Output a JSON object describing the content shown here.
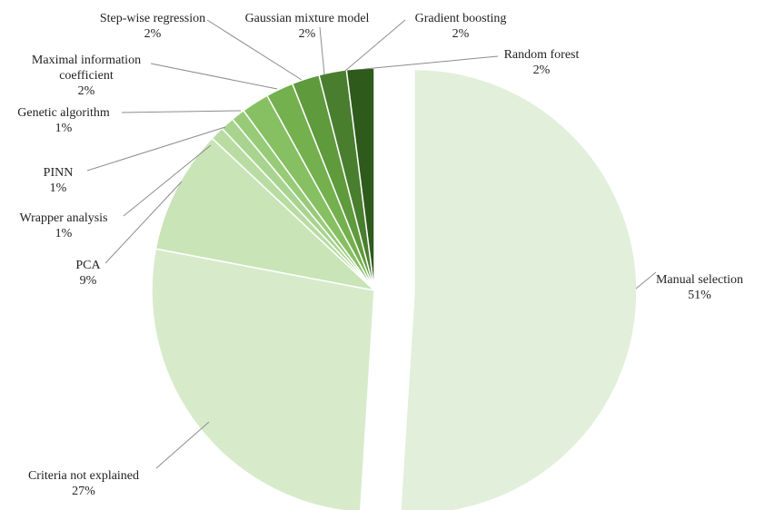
{
  "chart_data": {
    "type": "pie",
    "title": "",
    "slices": [
      {
        "name": "Manual selection",
        "display_name": [
          "Manual selection"
        ],
        "value": 51,
        "value_label": "51%",
        "color": "#e2efda"
      },
      {
        "name": "Criteria not explained",
        "display_name": [
          "Criteria not explained"
        ],
        "value": 27,
        "value_label": "27%",
        "color": "#d7ebcb"
      },
      {
        "name": "PCA",
        "display_name": [
          "PCA"
        ],
        "value": 9,
        "value_label": "9%",
        "color": "#c9e4b7"
      },
      {
        "name": "Wrapper analysis",
        "display_name": [
          "Wrapper analysis"
        ],
        "value": 1,
        "value_label": "1%",
        "color": "#b9dca3"
      },
      {
        "name": "PINN",
        "display_name": [
          "PINN"
        ],
        "value": 1,
        "value_label": "1%",
        "color": "#a9d48f"
      },
      {
        "name": "Genetic algorithm",
        "display_name": [
          "Genetic algorithm"
        ],
        "value": 1,
        "value_label": "1%",
        "color": "#98cb78"
      },
      {
        "name": "Maximal information coefficient",
        "display_name": [
          "Maximal information",
          "coefficient"
        ],
        "value": 2,
        "value_label": "2%",
        "color": "#86c062"
      },
      {
        "name": "Step-wise regression",
        "display_name": [
          "Step-wise regression"
        ],
        "value": 2,
        "value_label": "2%",
        "color": "#74b04e"
      },
      {
        "name": "Gaussian mixture model",
        "display_name": [
          "Gaussian mixture model"
        ],
        "value": 2,
        "value_label": "2%",
        "color": "#5f9a3d"
      },
      {
        "name": "Gradient boosting",
        "display_name": [
          "Gradient boosting"
        ],
        "value": 2,
        "value_label": "2%",
        "color": "#4a7e2f"
      },
      {
        "name": "Random forest",
        "display_name": [
          "Random forest"
        ],
        "value": 2,
        "value_label": "2%",
        "color": "#2e5a1c"
      }
    ],
    "exploded_slices": [
      "Manual selection"
    ],
    "legend": "none",
    "labels": "outside with leader lines"
  }
}
